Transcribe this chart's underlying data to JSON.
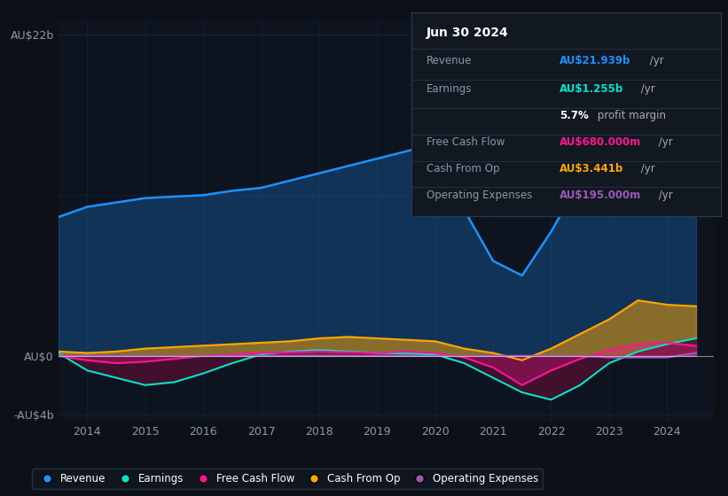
{
  "bg_color": "#0d1117",
  "plot_bg_color": "#0d1420",
  "grid_color": "#1e2d45",
  "years": [
    2013.5,
    2014.0,
    2014.5,
    2015.0,
    2015.5,
    2016.0,
    2016.5,
    2017.0,
    2017.5,
    2018.0,
    2018.5,
    2019.0,
    2019.5,
    2020.0,
    2020.5,
    2021.0,
    2021.5,
    2022.0,
    2022.5,
    2023.0,
    2023.5,
    2024.0,
    2024.5
  ],
  "revenue": [
    9.5,
    10.2,
    10.5,
    10.8,
    10.9,
    11.0,
    11.3,
    11.5,
    12.0,
    12.5,
    13.0,
    13.5,
    14.0,
    14.5,
    10.0,
    6.5,
    5.5,
    8.5,
    12.0,
    17.0,
    19.5,
    21.5,
    22.0
  ],
  "earnings": [
    0.2,
    -1.0,
    -1.5,
    -2.0,
    -1.8,
    -1.2,
    -0.5,
    0.1,
    0.3,
    0.4,
    0.3,
    0.2,
    0.15,
    0.1,
    -0.5,
    -1.5,
    -2.5,
    -3.0,
    -2.0,
    -0.5,
    0.3,
    0.8,
    1.2
  ],
  "free_cash_flow": [
    0.0,
    -0.3,
    -0.5,
    -0.4,
    -0.2,
    0.0,
    0.1,
    0.2,
    0.25,
    0.3,
    0.25,
    0.2,
    0.3,
    0.2,
    -0.1,
    -0.8,
    -2.0,
    -1.0,
    -0.2,
    0.4,
    0.8,
    0.9,
    0.68
  ],
  "cash_from_op": [
    0.3,
    0.2,
    0.3,
    0.5,
    0.6,
    0.7,
    0.8,
    0.9,
    1.0,
    1.2,
    1.3,
    1.2,
    1.1,
    1.0,
    0.5,
    0.2,
    -0.3,
    0.5,
    1.5,
    2.5,
    3.8,
    3.5,
    3.4
  ],
  "op_expenses": [
    0.0,
    0.0,
    0.0,
    0.0,
    0.0,
    0.0,
    0.0,
    0.0,
    0.0,
    0.0,
    0.0,
    0.0,
    0.0,
    0.0,
    0.0,
    0.0,
    0.0,
    0.0,
    0.0,
    -0.1,
    -0.1,
    -0.1,
    0.2
  ],
  "revenue_color": "#1e90ff",
  "earnings_color": "#00e5c8",
  "free_cash_flow_color": "#ff1493",
  "cash_from_op_color": "#ffa500",
  "op_expenses_color": "#9b59b6",
  "earnings_fill_color": "#4a1030",
  "ylim": [
    -4.5,
    23.0
  ],
  "xticks": [
    2014,
    2015,
    2016,
    2017,
    2018,
    2019,
    2020,
    2021,
    2022,
    2023,
    2024
  ],
  "zero_line_color": "#ffffff",
  "box_bg_color": "#111820",
  "box_border_color": "#2a3a50",
  "box_title": "Jun 30 2024",
  "box_rows": [
    {
      "label": "Revenue",
      "value": "AU$21.939b",
      "suffix": " /yr",
      "value_color": "#1e90ff",
      "bold": true
    },
    {
      "label": "Earnings",
      "value": "AU$1.255b",
      "suffix": " /yr",
      "value_color": "#00e5c8",
      "bold": true
    },
    {
      "label": "",
      "value": "5.7%",
      "suffix": " profit margin",
      "value_color": "#ffffff",
      "bold": true
    },
    {
      "label": "Free Cash Flow",
      "value": "AU$680.000m",
      "suffix": " /yr",
      "value_color": "#ff1493",
      "bold": true
    },
    {
      "label": "Cash From Op",
      "value": "AU$3.441b",
      "suffix": " /yr",
      "value_color": "#ffa500",
      "bold": true
    },
    {
      "label": "Operating Expenses",
      "value": "AU$195.000m",
      "suffix": " /yr",
      "value_color": "#9b59b6",
      "bold": true
    }
  ],
  "legend": [
    {
      "label": "Revenue",
      "color": "#1e90ff"
    },
    {
      "label": "Earnings",
      "color": "#00e5c8"
    },
    {
      "label": "Free Cash Flow",
      "color": "#ff1493"
    },
    {
      "label": "Cash From Op",
      "color": "#ffa500"
    },
    {
      "label": "Operating Expenses",
      "color": "#9b59b6"
    }
  ]
}
